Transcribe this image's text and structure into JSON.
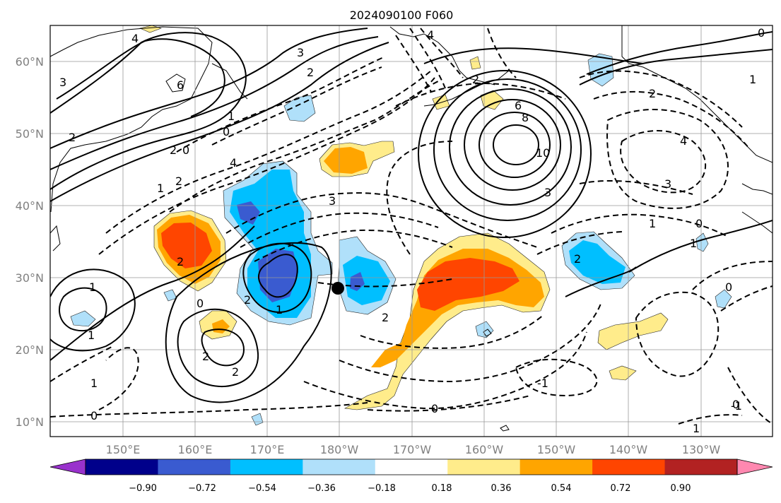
{
  "title": "2024090100 F060",
  "map": {
    "lat_labels": [
      "60°N",
      "50°N",
      "40°N",
      "30°N",
      "20°N",
      "10°N"
    ],
    "lon_labels": [
      "150°E",
      "160°E",
      "170°E",
      "180°W",
      "170°W",
      "160°W",
      "150°W",
      "140°W",
      "130°W"
    ],
    "grid": true,
    "marker": "black-dot-near-180W-29N"
  },
  "contour_labels": [
    {
      "text": "4"
    },
    {
      "text": "3"
    },
    {
      "text": "2"
    },
    {
      "text": "6"
    },
    {
      "text": "3"
    },
    {
      "text": "2"
    },
    {
      "text": "4"
    },
    {
      "text": "2"
    },
    {
      "text": "0"
    },
    {
      "text": "1"
    },
    {
      "text": "2"
    },
    {
      "text": "4"
    },
    {
      "text": "3"
    },
    {
      "text": "2"
    },
    {
      "text": "1"
    },
    {
      "text": "0"
    },
    {
      "text": "2"
    },
    {
      "text": "1"
    },
    {
      "text": "1"
    },
    {
      "text": "1"
    },
    {
      "text": "0"
    },
    {
      "text": "1"
    },
    {
      "text": "2"
    },
    {
      "text": "2"
    },
    {
      "text": "0"
    },
    {
      "text": "2"
    },
    {
      "text": "-1"
    },
    {
      "text": "0"
    },
    {
      "text": "6"
    },
    {
      "text": "8"
    },
    {
      "text": "10"
    },
    {
      "text": "3"
    },
    {
      "text": "2"
    },
    {
      "text": "4"
    },
    {
      "text": "3"
    },
    {
      "text": "1"
    },
    {
      "text": "2"
    },
    {
      "text": "0"
    },
    {
      "text": "1"
    },
    {
      "text": "0"
    },
    {
      "text": "-1"
    },
    {
      "text": "0"
    },
    {
      "text": "1"
    },
    {
      "text": "0"
    },
    {
      "text": "2"
    },
    {
      "text": "1"
    }
  ],
  "colorbar": {
    "colors": [
      "#9932cc",
      "#00008b",
      "#3a5bd0",
      "#00bfff",
      "#b0e0fa",
      "#ffffff",
      "#ffec8b",
      "#ffa500",
      "#ff4500",
      "#b22222",
      "#ff88b0"
    ],
    "tick_labels": [
      "−0.90",
      "−0.72",
      "−0.54",
      "−0.36",
      "−0.18",
      "0.18",
      "0.36",
      "0.54",
      "0.72",
      "0.90"
    ]
  }
}
